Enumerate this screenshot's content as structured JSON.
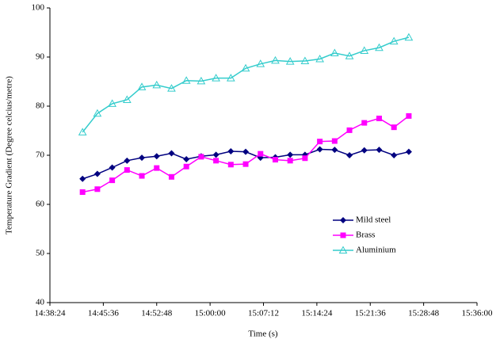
{
  "chart_data": {
    "type": "line",
    "x_label": "Time (s)",
    "y_label": "Temperature Gradient (Degree celcius/metre)",
    "x": [
      "14:42:48",
      "14:44:48",
      "14:46:48",
      "14:48:48",
      "14:50:48",
      "14:52:48",
      "14:54:48",
      "14:56:48",
      "14:58:48",
      "15:00:48",
      "15:02:48",
      "15:04:48",
      "15:06:48",
      "15:08:48",
      "15:10:48",
      "15:12:48",
      "15:14:48",
      "15:16:48",
      "15:18:48",
      "15:20:48",
      "15:22:48",
      "15:24:48",
      "15:26:48"
    ],
    "series": [
      {
        "name": "Mild steel",
        "color": "#000080",
        "marker": "diamond",
        "values": [
          65.2,
          66.2,
          67.5,
          68.9,
          69.5,
          69.8,
          70.4,
          69.2,
          69.8,
          70.1,
          70.8,
          70.7,
          69.5,
          69.6,
          70.1,
          70.1,
          71.2,
          71.1,
          70.0,
          71.0,
          71.1,
          70.0,
          70.7
        ]
      },
      {
        "name": "Brass",
        "color": "#ff00ff",
        "marker": "square",
        "values": [
          62.5,
          63.1,
          64.9,
          67.0,
          65.8,
          67.4,
          65.6,
          67.7,
          69.7,
          68.9,
          68.1,
          68.2,
          70.3,
          69.1,
          68.9,
          69.4,
          72.8,
          72.9,
          75.1,
          76.6,
          77.5,
          75.7,
          78.0
        ]
      },
      {
        "name": "Aluminium",
        "color": "#33cccc",
        "marker": "triangle",
        "values": [
          74.7,
          78.5,
          80.5,
          81.3,
          83.9,
          84.3,
          83.6,
          85.2,
          85.1,
          85.7,
          85.7,
          87.7,
          88.6,
          89.3,
          89.1,
          89.2,
          89.6,
          90.8,
          90.2,
          91.3,
          91.9,
          93.2,
          94.0
        ]
      }
    ],
    "xlim": [
      "14:38:24",
      "15:36:00"
    ],
    "xticks": [
      "14:38:24",
      "14:45:36",
      "14:52:48",
      "15:00:00",
      "15:07:12",
      "15:14:24",
      "15:21:36",
      "15:28:48",
      "15:36:00"
    ],
    "ylim": [
      40,
      100
    ],
    "yticks": [
      40,
      50,
      60,
      70,
      80,
      90,
      100
    ],
    "grid": false,
    "legend": "lower-right"
  }
}
